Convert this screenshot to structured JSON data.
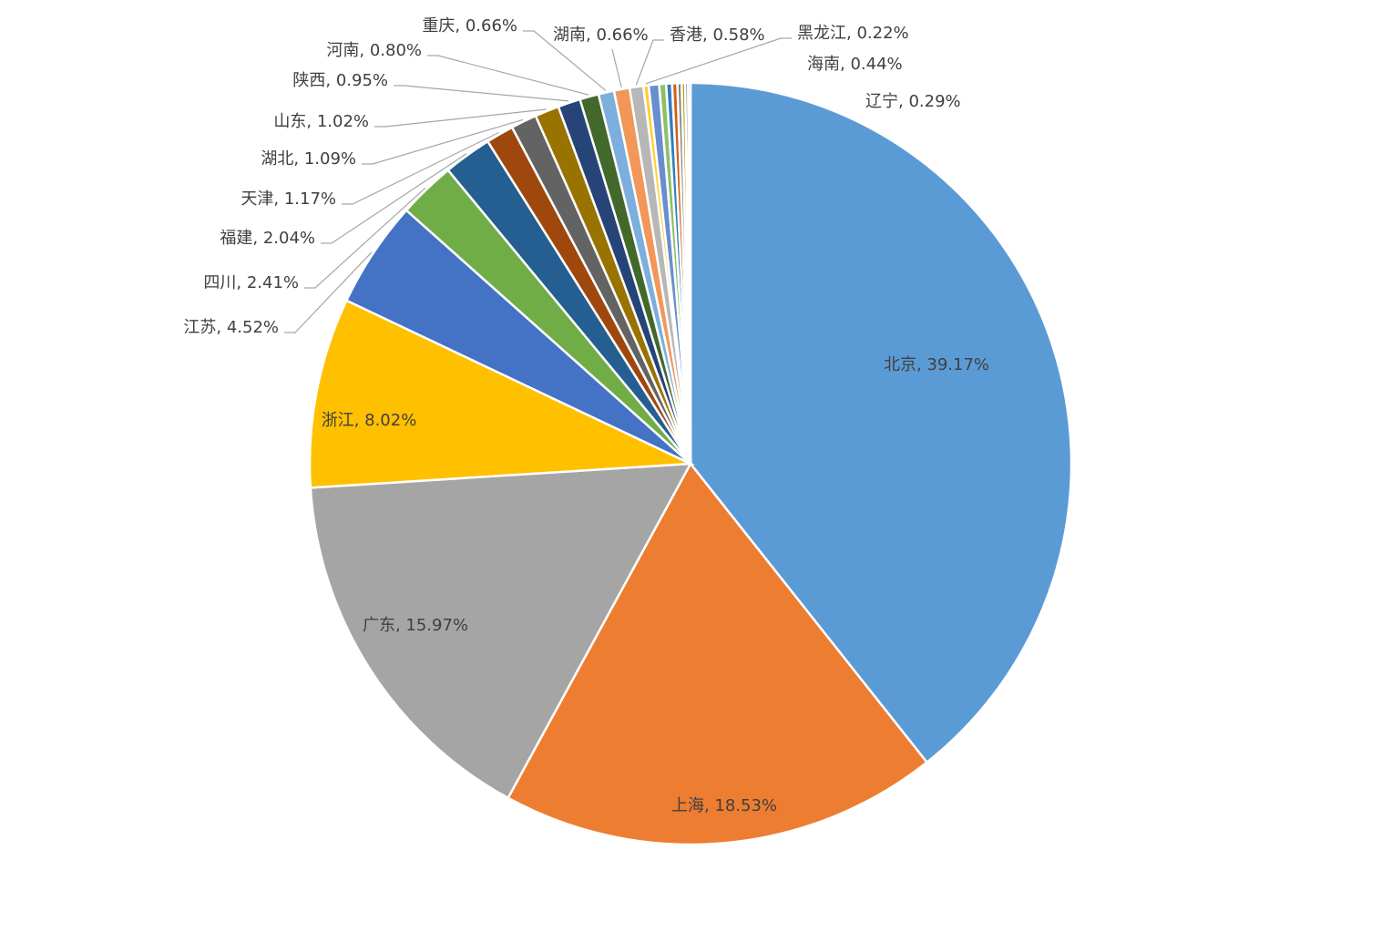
{
  "chart_data": {
    "type": "pie",
    "title": "",
    "start_angle_deg": 0,
    "direction": "clockwise",
    "label_format": "{name}, {value}%",
    "slices": [
      {
        "name": "北京",
        "value": 39.17,
        "label": "北京, 39.17%",
        "color": "#5B9BD5"
      },
      {
        "name": "上海",
        "value": 18.53,
        "label": "上海, 18.53%",
        "color": "#ED7D31"
      },
      {
        "name": "广东",
        "value": 15.97,
        "label": "广东, 15.97%",
        "color": "#A5A5A5"
      },
      {
        "name": "浙江",
        "value": 8.02,
        "label": "浙江, 8.02%",
        "color": "#FFC000"
      },
      {
        "name": "江苏",
        "value": 4.52,
        "label": "江苏, 4.52%",
        "color": "#4472C4"
      },
      {
        "name": "四川",
        "value": 2.41,
        "label": "四川, 2.41%",
        "color": "#70AD47"
      },
      {
        "name": "福建",
        "value": 2.04,
        "label": "福建, 2.04%",
        "color": "#255E91"
      },
      {
        "name": "天津",
        "value": 1.17,
        "label": "天津, 1.17%",
        "color": "#9E480E"
      },
      {
        "name": "湖北",
        "value": 1.09,
        "label": "湖北, 1.09%",
        "color": "#636363"
      },
      {
        "name": "山东",
        "value": 1.02,
        "label": "山东, 1.02%",
        "color": "#997300"
      },
      {
        "name": "陕西",
        "value": 0.95,
        "label": "陕西, 0.95%",
        "color": "#264478"
      },
      {
        "name": "河南",
        "value": 0.8,
        "label": "河南, 0.80%",
        "color": "#43682B"
      },
      {
        "name": "重庆",
        "value": 0.66,
        "label": "重庆, 0.66%",
        "color": "#7CAFDD"
      },
      {
        "name": "湖南",
        "value": 0.66,
        "label": "湖南, 0.66%",
        "color": "#F1975A"
      },
      {
        "name": "香港",
        "value": 0.58,
        "label": "香港, 0.58%",
        "color": "#B7B7B7"
      },
      {
        "name": "黑龙江",
        "value": 0.22,
        "label": "黑龙江, 0.22%",
        "color": "#FFCD33"
      },
      {
        "name": "海南",
        "value": 0.44,
        "label": "海南, 0.44%",
        "color": "#698ED0"
      },
      {
        "name": "辽宁",
        "value": 0.29,
        "label": "辽宁, 0.29%",
        "color": "#8CC168"
      },
      {
        "name": "",
        "value": 0.25,
        "label": "",
        "color": "#327DC2"
      },
      {
        "name": "",
        "value": 0.22,
        "label": "",
        "color": "#D26012"
      },
      {
        "name": "",
        "value": 0.18,
        "label": "",
        "color": "#848484"
      },
      {
        "name": "",
        "value": 0.15,
        "label": "",
        "color": "#CC9A00"
      },
      {
        "name": "",
        "value": 0.12,
        "label": "",
        "color": "#335AA1"
      },
      {
        "name": "",
        "value": 0.1,
        "label": "",
        "color": "#5A8A39"
      }
    ]
  }
}
